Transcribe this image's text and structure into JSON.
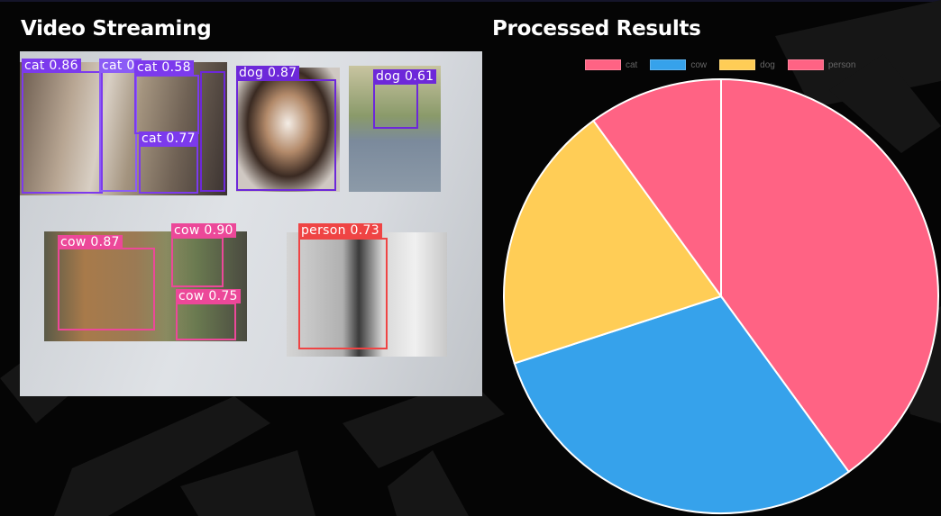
{
  "panels": {
    "video_title": "Video Streaming",
    "results_title": "Processed Results"
  },
  "detections": [
    {
      "label": "cat 0.86",
      "color": "#7c3aed"
    },
    {
      "label": "cat 0.",
      "color": "#8b5cf6"
    },
    {
      "label": "cat 0.58",
      "color": "#7c3aed"
    },
    {
      "label": "cat 0.77",
      "color": "#7c3aed"
    },
    {
      "label": "dog 0.87",
      "color": "#6d28d9"
    },
    {
      "label": "dog 0.61",
      "color": "#6d28d9"
    },
    {
      "label": "cow 0.87",
      "color": "#ec4899"
    },
    {
      "label": "cow 0.90",
      "color": "#ec4899"
    },
    {
      "label": "cow 0.75",
      "color": "#ec4899"
    },
    {
      "label": "person 0.73",
      "color": "#ef4444"
    }
  ],
  "chart_data": {
    "type": "pie",
    "legend_placement": "top",
    "labels": [
      "cat",
      "cow",
      "dog",
      "person"
    ],
    "values": [
      4,
      3,
      2,
      1
    ],
    "colors": [
      "#ff6384",
      "#36a2eb",
      "#ffcd56",
      "#ff6384"
    ]
  }
}
